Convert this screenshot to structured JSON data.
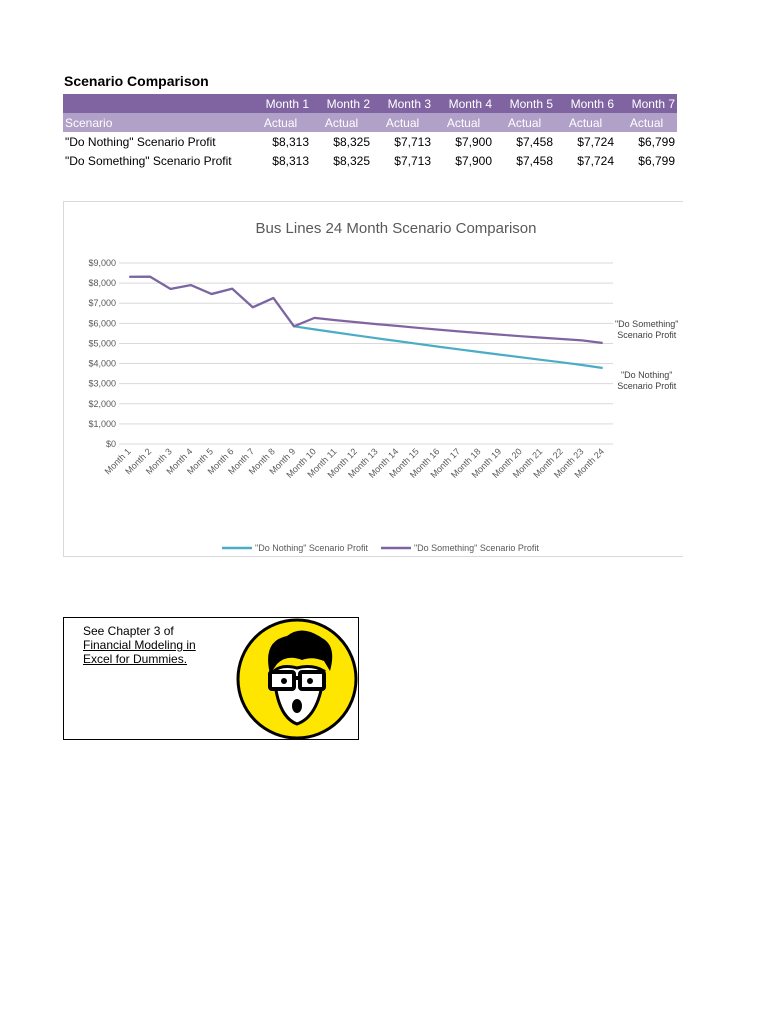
{
  "header": {
    "title": "Scenario Comparison"
  },
  "table": {
    "columns": [
      "Month 1",
      "Month 2",
      "Month 3",
      "Month 4",
      "Month 5",
      "Month 6",
      "Month 7"
    ],
    "subheader": [
      "Scenario",
      "Actual",
      "Actual",
      "Actual",
      "Actual",
      "Actual",
      "Actual",
      "Actual"
    ],
    "rows": [
      [
        "\"Do Nothing\" Scenario Profit",
        "$8,313",
        "$8,325",
        "$7,713",
        "$7,900",
        "$7,458",
        "$7,724",
        "$6,799"
      ],
      [
        "\"Do Something\" Scenario Profit",
        "$8,313",
        "$8,325",
        "$7,713",
        "$7,900",
        "$7,458",
        "$7,724",
        "$6,799"
      ]
    ]
  },
  "chart_data": {
    "type": "line",
    "title": "Bus Lines 24 Month Scenario Comparison",
    "categories": [
      "Month 1",
      "Month 2",
      "Month 3",
      "Month 4",
      "Month 5",
      "Month 6",
      "Month 7",
      "Month 8",
      "Month 9",
      "Month 10",
      "Month 11",
      "Month 12",
      "Month 13",
      "Month 14",
      "Month 15",
      "Month 16",
      "Month 17",
      "Month 18",
      "Month 19",
      "Month 20",
      "Month 21",
      "Month 22",
      "Month 23",
      "Month 24"
    ],
    "series": [
      {
        "name": "\"Do Nothing\" Scenario Profit",
        "color": "#4bacc6",
        "values": [
          8313,
          8325,
          7713,
          7900,
          7458,
          7724,
          6799,
          7260,
          5850,
          5700,
          5550,
          5405,
          5260,
          5120,
          4980,
          4845,
          4710,
          4575,
          4445,
          4315,
          4185,
          4060,
          3930,
          3780
        ]
      },
      {
        "name": "\"Do Something\" Scenario Profit",
        "color": "#8064a2",
        "values": [
          8313,
          8325,
          7713,
          7900,
          7458,
          7724,
          6799,
          7260,
          5850,
          6270,
          6160,
          6060,
          5960,
          5870,
          5780,
          5690,
          5600,
          5520,
          5440,
          5360,
          5290,
          5220,
          5150,
          5020
        ]
      }
    ],
    "ylim": [
      0,
      9000
    ],
    "yticks": [
      {
        "value": 0,
        "label": "$0"
      },
      {
        "value": 1000,
        "label": "$1,000"
      },
      {
        "value": 2000,
        "label": "$2,000"
      },
      {
        "value": 3000,
        "label": "$3,000"
      },
      {
        "value": 4000,
        "label": "$4,000"
      },
      {
        "value": 5000,
        "label": "$5,000"
      },
      {
        "value": 6000,
        "label": "$6,000"
      },
      {
        "value": 7000,
        "label": "$7,000"
      },
      {
        "value": 8000,
        "label": "$8,000"
      },
      {
        "value": 9000,
        "label": "$9,000"
      }
    ],
    "grid": true,
    "legend": "bottom"
  },
  "note": {
    "intro": "See Chapter 3 of",
    "link_lines": [
      "Financial Modeling in",
      "Excel for Dummies."
    ]
  }
}
